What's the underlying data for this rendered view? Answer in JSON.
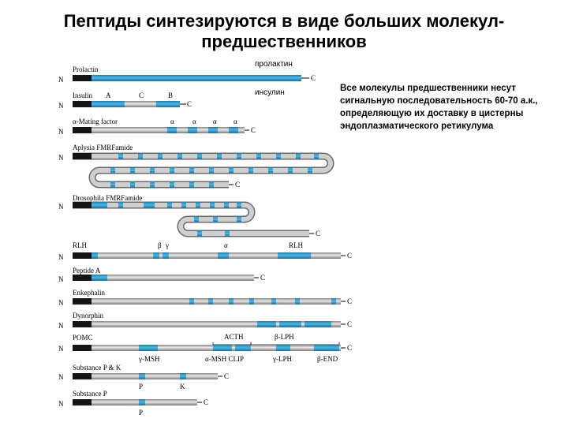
{
  "title": {
    "line1": "Пептиды синтезируются в виде больших молекул-",
    "line2": "предшественников"
  },
  "labels": {
    "prolactin_ru": "пролактин",
    "insulin_ru": "инсулин"
  },
  "side_text": "Все молекулы предшественники несут сигнальную последовательность 60-70 а.к., определяющую их доставку в цистерны эндоплазматического ретикулума",
  "terminals": {
    "n": "N",
    "c": "C"
  },
  "precursors": {
    "prolactin": "Prolactin",
    "insulin": "Insulin",
    "alpha_mating": "α-Mating factor",
    "aplysia": "Aplysia FMRFamide",
    "drosophila": "Drosophila FMRFamide",
    "rlh": "RLH",
    "peptide_a": "Peptide A",
    "enkephalin": "Enkephalin",
    "dynorphin": "Dynorphin",
    "pomc": "POMC",
    "substance_pk": "Substance P & K",
    "substance_p": "Substance P"
  },
  "segments": {
    "ins_a": "A",
    "ins_c": "C",
    "ins_b": "B",
    "alpha": "α",
    "rlh_beta": "β",
    "rlh_gamma": "γ",
    "rlh_alpha": "α",
    "acth": "ACTH",
    "beta_lph": "β-LPH",
    "gamma_msh": "γ-MSH",
    "alpha_msh_clip": "α-MSH CLIP",
    "gamma_lph": "γ-LPH",
    "beta_end": "β-END",
    "p": "P",
    "k": "K"
  },
  "colors": {
    "blue": "#2b98c9",
    "gray": "#bcbcbc",
    "dark": "#141414"
  }
}
